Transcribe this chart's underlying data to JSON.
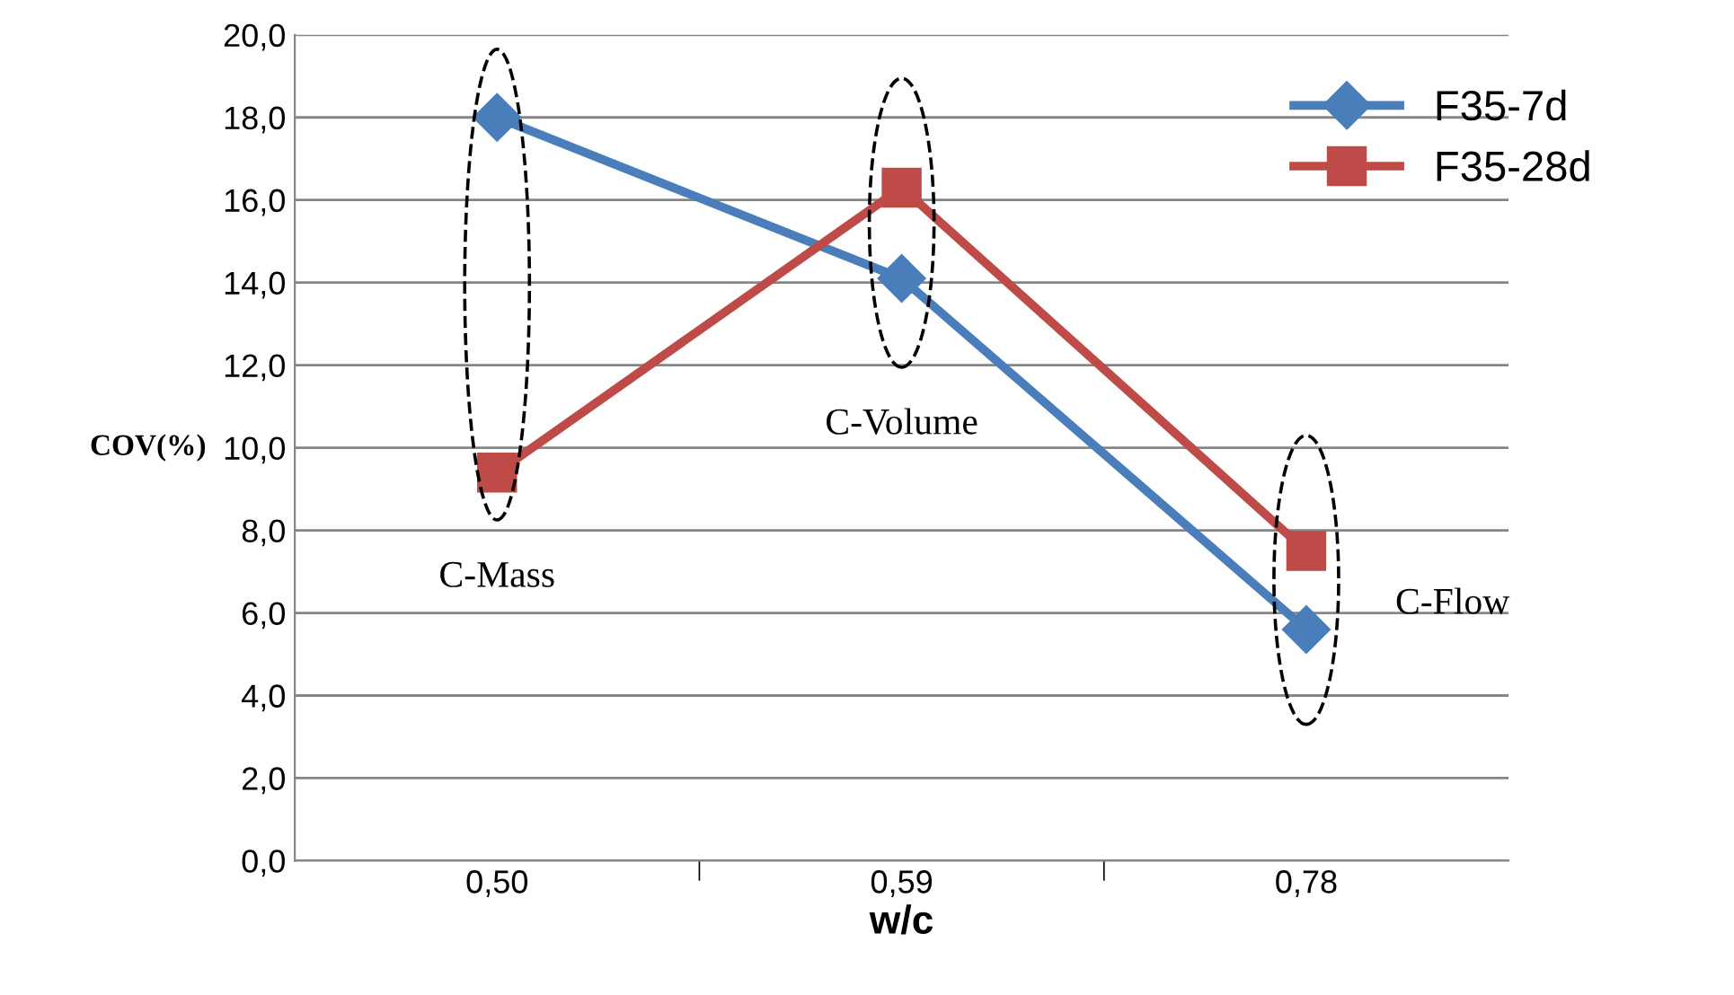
{
  "chart_data": {
    "type": "line",
    "xlabel": "w/c",
    "ylabel": "COV(%)",
    "categories": [
      "0,50",
      "0,59",
      "0,78"
    ],
    "series": [
      {
        "name": "F35-7d",
        "color": "#4a7ebb",
        "marker": "diamond",
        "values": [
          18.0,
          14.1,
          5.6
        ]
      },
      {
        "name": "F35-28d",
        "color": "#be4b48",
        "marker": "square",
        "values": [
          9.4,
          16.3,
          7.5
        ]
      }
    ],
    "ylim": [
      0,
      20
    ],
    "yticks": [
      {
        "value": 0,
        "label": "0,0"
      },
      {
        "value": 2,
        "label": "2,0"
      },
      {
        "value": 4,
        "label": "4,0"
      },
      {
        "value": 6,
        "label": "6,0"
      },
      {
        "value": 8,
        "label": "8,0"
      },
      {
        "value": 10,
        "label": "10,0"
      },
      {
        "value": 12,
        "label": "12,0"
      },
      {
        "value": 14,
        "label": "14,0"
      },
      {
        "value": 16,
        "label": "16,0"
      },
      {
        "value": 18,
        "label": "18,0"
      },
      {
        "value": 20,
        "label": "20,0"
      }
    ],
    "annotations": [
      "C-Mass",
      "C-Volume",
      "C-Flow"
    ],
    "grid": "y",
    "legend": "top right",
    "line_style": "solid"
  }
}
